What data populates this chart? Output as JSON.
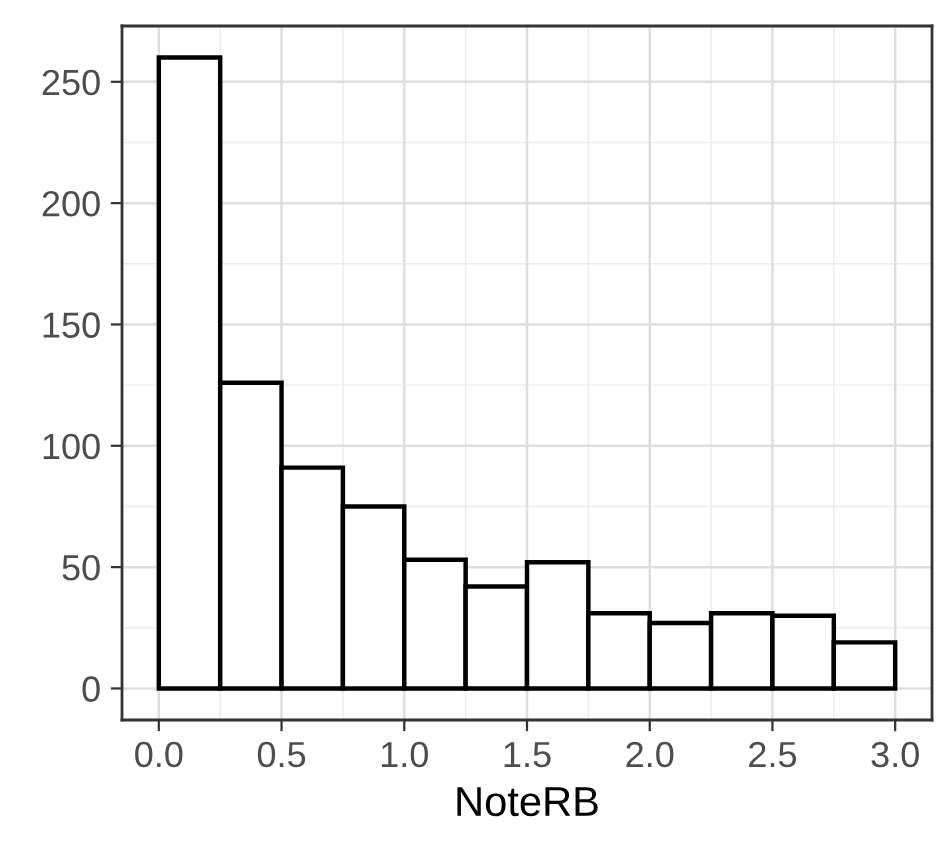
{
  "chart_data": {
    "type": "histogram",
    "xlabel": "NoteRB",
    "bins": [
      0,
      0.25,
      0.5,
      0.75,
      1.0,
      1.25,
      1.5,
      1.75,
      2.0,
      2.25,
      2.5,
      2.75,
      3.0
    ],
    "values": [
      260,
      126,
      91,
      75,
      53,
      42,
      52,
      31,
      27,
      31,
      30,
      19
    ],
    "color": "#ffffff",
    "xlim": [
      -0.15,
      3.15
    ],
    "ylim": [
      -13,
      273
    ],
    "xticks": [
      {
        "value": 0,
        "label": "0.0"
      },
      0.5,
      {
        "value": 1,
        "label": "1.0"
      },
      1.5,
      {
        "value": 2,
        "label": "2.0"
      },
      2.5,
      {
        "value": 3,
        "label": "3.0"
      }
    ],
    "yticks": [
      0,
      50,
      100,
      150,
      200,
      250
    ],
    "grid": true
  }
}
